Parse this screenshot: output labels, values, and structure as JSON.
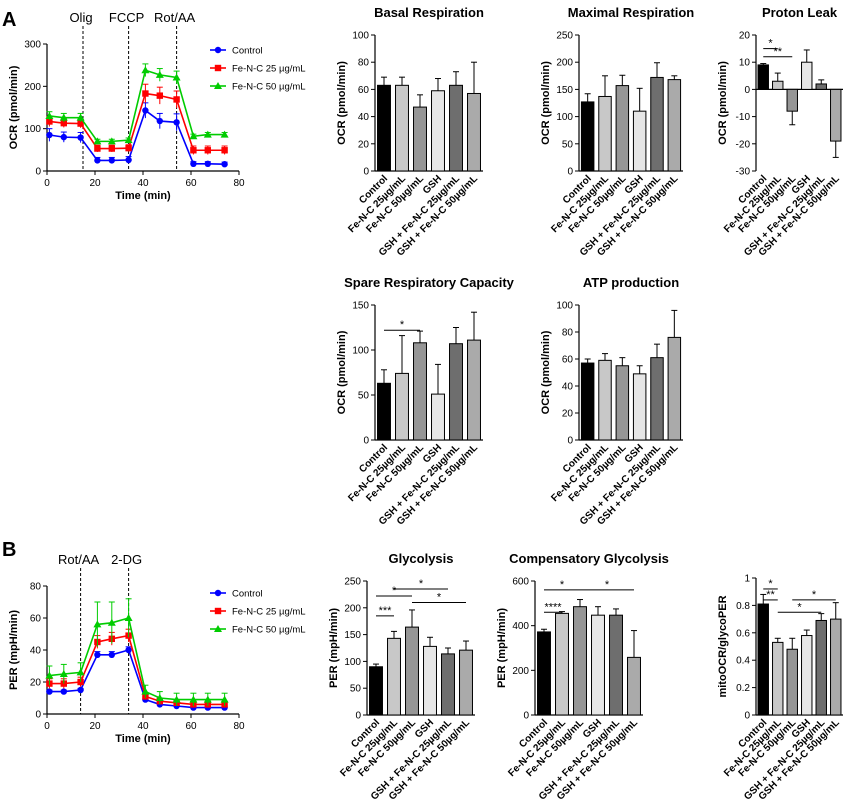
{
  "figure": {
    "panel_a": "A",
    "panel_b": "B"
  },
  "colors": {
    "control": "#0000ff",
    "fe25": "#ff0000",
    "fe50": "#00cc00",
    "bars": [
      "#000000",
      "#c8c8c8",
      "#969696",
      "#e6e6e6",
      "#6e6e6e",
      "#aaaaaa"
    ]
  },
  "bar_categories": [
    "Control",
    "Fe-N-C 25µg/mL",
    "Fe-N-C 50µg/mL",
    "GSH",
    "GSH + Fe-N-C 25µg/mL",
    "GSH + Fe-N-C 50µg/mL"
  ],
  "chart_data": [
    {
      "id": "ocr_line",
      "type": "line",
      "title": "",
      "xlabel": "Time (min)",
      "ylabel": "OCR (pmol/min)",
      "xlim": [
        0,
        80
      ],
      "ylim": [
        0,
        300
      ],
      "xticks": [
        0,
        20,
        40,
        60,
        80
      ],
      "yticks": [
        0,
        100,
        200,
        300
      ],
      "injections": [
        {
          "x": 15,
          "label": "Olig"
        },
        {
          "x": 34,
          "label": "FCCP"
        },
        {
          "x": 54,
          "label": "Rot/AA"
        }
      ],
      "x": [
        1,
        7,
        14,
        21,
        27,
        34,
        41,
        47,
        54,
        61,
        67,
        74
      ],
      "series": [
        {
          "name": "Control",
          "color": "#0000ff",
          "marker": "circle",
          "values": [
            85,
            80,
            79,
            25,
            25,
            26,
            143,
            118,
            115,
            17,
            17,
            16
          ],
          "errors": [
            15,
            12,
            12,
            7,
            7,
            8,
            18,
            18,
            20,
            5,
            5,
            5
          ]
        },
        {
          "name": "Fe-N-C 25 µg/mL",
          "color": "#ff0000",
          "marker": "square",
          "values": [
            117,
            113,
            112,
            53,
            53,
            54,
            183,
            178,
            169,
            49,
            49,
            49
          ],
          "errors": [
            12,
            10,
            10,
            8,
            8,
            8,
            22,
            20,
            20,
            10,
            10,
            10
          ]
        },
        {
          "name": "Fe-N-C 50 µg/mL",
          "color": "#00cc00",
          "marker": "triangle",
          "values": [
            130,
            126,
            126,
            70,
            70,
            73,
            238,
            227,
            221,
            82,
            86,
            86
          ],
          "errors": [
            10,
            10,
            10,
            5,
            5,
            5,
            15,
            15,
            15,
            5,
            5,
            5
          ]
        }
      ]
    },
    {
      "id": "basal",
      "type": "bar",
      "title": "Basal Respiration",
      "ylabel": "OCR (pmol/min)",
      "ylim": [
        0,
        100
      ],
      "yticks": [
        0,
        20,
        40,
        60,
        80,
        100
      ],
      "values": [
        63,
        63,
        47,
        59,
        63,
        57
      ],
      "errors": [
        6,
        6,
        9,
        9,
        10,
        23
      ],
      "significance": []
    },
    {
      "id": "maximal",
      "type": "bar",
      "title": "Maximal Respiration",
      "ylabel": "OCR (pmol/min)",
      "ylim": [
        0,
        250
      ],
      "yticks": [
        0,
        50,
        100,
        150,
        200,
        250
      ],
      "values": [
        127,
        137,
        157,
        110,
        172,
        168
      ],
      "errors": [
        15,
        38,
        19,
        42,
        27,
        7
      ],
      "significance": []
    },
    {
      "id": "proton",
      "type": "bar",
      "title": "Proton Leak",
      "ylabel": "OCR (pmol/min)",
      "ylim": [
        -30,
        20
      ],
      "yticks": [
        -30,
        -20,
        -10,
        0,
        10,
        20
      ],
      "values": [
        9,
        3,
        -8,
        10,
        2,
        -19
      ],
      "errors": [
        0.5,
        3,
        5,
        4.5,
        1.5,
        6
      ],
      "significance": [
        {
          "from": 0,
          "to": 1,
          "y": 15,
          "label": "*"
        },
        {
          "from": 0,
          "to": 2,
          "y": 12,
          "label": "**"
        }
      ]
    },
    {
      "id": "spare",
      "type": "bar",
      "title": "Spare Respiratory Capacity",
      "ylabel": "OCR (pmol/min)",
      "ylim": [
        0,
        150
      ],
      "yticks": [
        0,
        50,
        100,
        150
      ],
      "values": [
        63,
        74,
        108,
        51,
        107,
        111
      ],
      "errors": [
        15,
        42,
        13,
        33,
        18,
        31
      ],
      "significance": [
        {
          "from": 0,
          "to": 2,
          "y": 122,
          "label": "*"
        }
      ]
    },
    {
      "id": "atp",
      "type": "bar",
      "title": "ATP production",
      "ylabel": "OCR (pmol/min)",
      "ylim": [
        0,
        100
      ],
      "yticks": [
        0,
        20,
        40,
        60,
        80,
        100
      ],
      "values": [
        57,
        59,
        55,
        49,
        61,
        76
      ],
      "errors": [
        3,
        5,
        6,
        6,
        10,
        20
      ],
      "significance": []
    },
    {
      "id": "per_line",
      "type": "line",
      "title": "",
      "xlabel": "Time (min)",
      "ylabel": "PER (mpH/min)",
      "xlim": [
        0,
        80
      ],
      "ylim": [
        0,
        80
      ],
      "xticks": [
        0,
        20,
        40,
        60,
        80
      ],
      "yticks": [
        0,
        20,
        40,
        60,
        80
      ],
      "injections": [
        {
          "x": 14,
          "label": "Rot/AA"
        },
        {
          "x": 34,
          "label": "2-DG"
        }
      ],
      "x": [
        1,
        7,
        14,
        21,
        27,
        34,
        41,
        47,
        54,
        61,
        67,
        74
      ],
      "series": [
        {
          "name": "Control",
          "color": "#0000ff",
          "marker": "circle",
          "values": [
            14,
            14,
            15,
            37,
            37,
            40,
            9,
            6,
            5,
            4,
            4,
            4
          ],
          "errors": [
            1,
            1,
            1,
            2,
            2,
            2,
            1,
            1,
            1,
            1,
            1,
            1
          ]
        },
        {
          "name": "Fe-N-C 25 µg/mL",
          "color": "#ff0000",
          "marker": "square",
          "values": [
            19,
            19,
            20,
            45,
            47,
            49,
            11,
            8,
            7,
            6,
            6,
            6
          ],
          "errors": [
            3,
            3,
            3,
            4,
            4,
            4,
            2,
            2,
            2,
            2,
            2,
            2
          ]
        },
        {
          "name": "Fe-N-C 50 µg/mL",
          "color": "#00cc00",
          "marker": "triangle",
          "values": [
            24,
            25,
            26,
            56,
            57,
            60,
            14,
            10,
            9,
            9,
            9,
            9
          ],
          "errors": [
            6,
            6,
            6,
            14,
            13,
            12,
            4,
            4,
            4,
            4,
            4,
            4
          ]
        }
      ]
    },
    {
      "id": "glyco",
      "type": "bar",
      "title": "Glycolysis",
      "ylabel": "PER (mpH/min)",
      "ylim": [
        0,
        250
      ],
      "yticks": [
        0,
        50,
        100,
        150,
        200,
        250
      ],
      "values": [
        90,
        143,
        164,
        128,
        114,
        121
      ],
      "errors": [
        5,
        13,
        32,
        17,
        11,
        17
      ],
      "significance": [
        {
          "from": 1,
          "to": 4,
          "y": 235,
          "label": "*"
        },
        {
          "from": 0,
          "to": 2,
          "y": 222,
          "label": "*"
        },
        {
          "from": 2,
          "to": 5,
          "y": 210,
          "label": "*"
        },
        {
          "from": 0,
          "to": 1,
          "y": 185,
          "label": "***"
        }
      ]
    },
    {
      "id": "comp",
      "type": "bar",
      "title": "Compensatory Glycolysis",
      "ylabel": "PER (mpH/min)",
      "ylim": [
        0,
        600
      ],
      "yticks": [
        0,
        200,
        400,
        600
      ],
      "values": [
        372,
        455,
        485,
        447,
        447,
        258
      ],
      "errors": [
        12,
        8,
        32,
        38,
        28,
        120
      ],
      "significance": [
        {
          "from": 0,
          "to": 2,
          "y": 560,
          "label": "*"
        },
        {
          "from": 2,
          "to": 5,
          "y": 560,
          "label": "*"
        },
        {
          "from": 0,
          "to": 1,
          "y": 460,
          "label": "****"
        }
      ]
    },
    {
      "id": "ratio",
      "type": "bar",
      "title": "",
      "ylabel": "mitoOCR/glycoPER",
      "ylim": [
        0,
        1.0
      ],
      "yticks": [
        0,
        0.2,
        0.4,
        0.6,
        0.8,
        1.0
      ],
      "values": [
        0.81,
        0.53,
        0.48,
        0.58,
        0.69,
        0.7
      ],
      "errors": [
        0.07,
        0.03,
        0.08,
        0.04,
        0.05,
        0.12
      ],
      "significance": [
        {
          "from": 0,
          "to": 1,
          "y": 0.92,
          "label": "*"
        },
        {
          "from": 0,
          "to": 1,
          "y": 0.84,
          "label": "**"
        },
        {
          "from": 2,
          "to": 5,
          "y": 0.84,
          "label": "*"
        },
        {
          "from": 1,
          "to": 4,
          "y": 0.75,
          "label": "*"
        }
      ]
    }
  ]
}
